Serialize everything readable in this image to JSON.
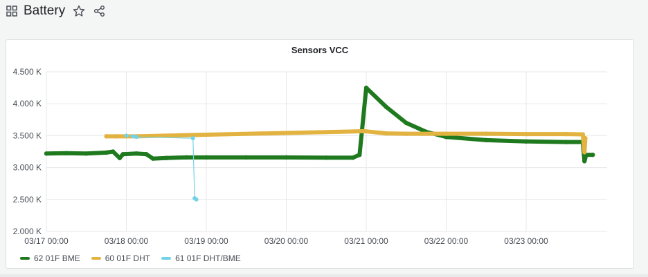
{
  "dashboard": {
    "title": "Battery",
    "icons": [
      "grid-icon",
      "star-icon",
      "share-icon"
    ]
  },
  "panel": {
    "title": "Sensors VCC"
  },
  "colors": {
    "green": "#1f7a1f",
    "yellow": "#e3b341",
    "cyan": "#73d3e6",
    "grid": "#e6e8ea"
  },
  "chart_data": {
    "type": "scatter",
    "title": "Sensors VCC",
    "xlabel": "",
    "ylabel": "",
    "x_ticks": [
      "03/17 00:00",
      "03/18 00:00",
      "03/19 00:00",
      "03/20 00:00",
      "03/21 00:00",
      "03/22 00:00",
      "03/23 00:00"
    ],
    "y_ticks": [
      "2.000 K",
      "2.500 K",
      "3.000 K",
      "3.500 K",
      "4.000 K",
      "4.500 K"
    ],
    "xlim": [
      "03/17 00:00",
      "03/24 00:00"
    ],
    "ylim": [
      2000,
      4500
    ],
    "grid": true,
    "legend_position": "bottom-left",
    "series": [
      {
        "name": "62 01F BME",
        "color": "#1f7a1f",
        "points": [
          [
            "03/17 00:00",
            3220
          ],
          [
            "03/17 06:00",
            3225
          ],
          [
            "03/17 12:00",
            3220
          ],
          [
            "03/17 18:00",
            3235
          ],
          [
            "03/17 20:00",
            3250
          ],
          [
            "03/17 22:00",
            3150
          ],
          [
            "03/17 23:00",
            3210
          ],
          [
            "03/18 03:00",
            3220
          ],
          [
            "03/18 06:00",
            3210
          ],
          [
            "03/18 08:00",
            3140
          ],
          [
            "03/18 12:00",
            3150
          ],
          [
            "03/18 18:00",
            3160
          ],
          [
            "03/19 00:00",
            3160
          ],
          [
            "03/19 12:00",
            3160
          ],
          [
            "03/20 00:00",
            3160
          ],
          [
            "03/20 12:00",
            3155
          ],
          [
            "03/20 20:00",
            3155
          ],
          [
            "03/20 22:00",
            3200
          ],
          [
            "03/21 00:00",
            4250
          ],
          [
            "03/21 06:00",
            3950
          ],
          [
            "03/21 12:00",
            3700
          ],
          [
            "03/21 18:00",
            3560
          ],
          [
            "03/22 00:00",
            3480
          ],
          [
            "03/22 12:00",
            3430
          ],
          [
            "03/23 00:00",
            3410
          ],
          [
            "03/23 12:00",
            3400
          ],
          [
            "03/23 17:00",
            3400
          ],
          [
            "03/23 17:30",
            3100
          ],
          [
            "03/23 18:00",
            3200
          ],
          [
            "03/23 20:00",
            3200
          ]
        ]
      },
      {
        "name": "60 01F DHT",
        "color": "#e3b341",
        "points": [
          [
            "03/17 18:00",
            3490
          ],
          [
            "03/17 21:00",
            3490
          ],
          [
            "03/18 00:00",
            3490
          ],
          [
            "03/18 03:00",
            3490
          ],
          [
            "03/20 23:30",
            3570
          ],
          [
            "03/21 06:00",
            3535
          ],
          [
            "03/21 12:00",
            3530
          ],
          [
            "03/22 00:00",
            3530
          ],
          [
            "03/22 12:00",
            3530
          ],
          [
            "03/23 00:00",
            3525
          ],
          [
            "03/23 12:00",
            3525
          ],
          [
            "03/23 17:00",
            3520
          ],
          [
            "03/23 17:30",
            3240
          ],
          [
            "03/23 17:45",
            3460
          ]
        ]
      },
      {
        "name": "61 01F DHT/BME",
        "color": "#73d3e6",
        "points": [
          [
            "03/18 00:00",
            3500
          ],
          [
            "03/18 02:00",
            3490
          ],
          [
            "03/18 03:00",
            3480
          ],
          [
            "03/18 20:00",
            3460
          ],
          [
            "03/18 20:30",
            2520
          ],
          [
            "03/18 21:00",
            2500
          ]
        ]
      }
    ]
  }
}
